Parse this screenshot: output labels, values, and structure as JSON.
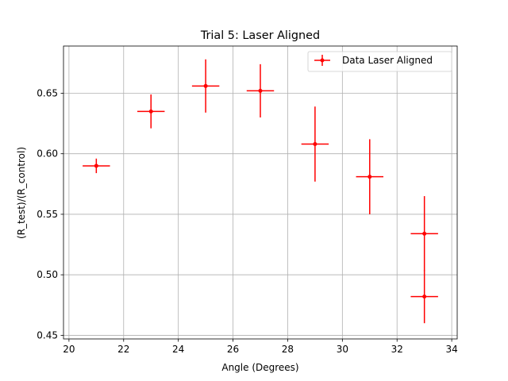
{
  "chart_data": {
    "type": "scatter",
    "title": "Trial 5: Laser Aligned",
    "xlabel": "Angle (Degrees)",
    "ylabel": "(R_test)/(R_control)",
    "xlim": [
      19.8,
      34.2
    ],
    "ylim": [
      0.447,
      0.689
    ],
    "xticks": [
      20,
      22,
      24,
      26,
      28,
      30,
      32,
      34
    ],
    "xtick_labels": [
      "20",
      "22",
      "24",
      "26",
      "28",
      "30",
      "32",
      "34"
    ],
    "yticks": [
      0.45,
      0.5,
      0.55,
      0.6,
      0.65
    ],
    "ytick_labels": [
      "0.45",
      "0.50",
      "0.55",
      "0.60",
      "0.65"
    ],
    "grid": true,
    "legend_position": "top-right",
    "series": [
      {
        "name": "Data Laser Aligned",
        "color": "#ff0000",
        "points": [
          {
            "x": 21,
            "y": 0.59,
            "xerr": 0.5,
            "yerr": 0.006
          },
          {
            "x": 23,
            "y": 0.635,
            "xerr": 0.5,
            "yerr": 0.014
          },
          {
            "x": 25,
            "y": 0.656,
            "xerr": 0.5,
            "yerr": 0.022
          },
          {
            "x": 27,
            "y": 0.652,
            "xerr": 0.5,
            "yerr": 0.022
          },
          {
            "x": 29,
            "y": 0.608,
            "xerr": 0.5,
            "yerr": 0.031
          },
          {
            "x": 31,
            "y": 0.581,
            "xerr": 0.5,
            "yerr": 0.031
          },
          {
            "x": 33,
            "y": 0.534,
            "xerr": 0.5,
            "yerr": 0.031
          },
          {
            "x": 33,
            "y": 0.482,
            "xerr": 0.5,
            "yerr": 0.022
          }
        ]
      }
    ]
  }
}
